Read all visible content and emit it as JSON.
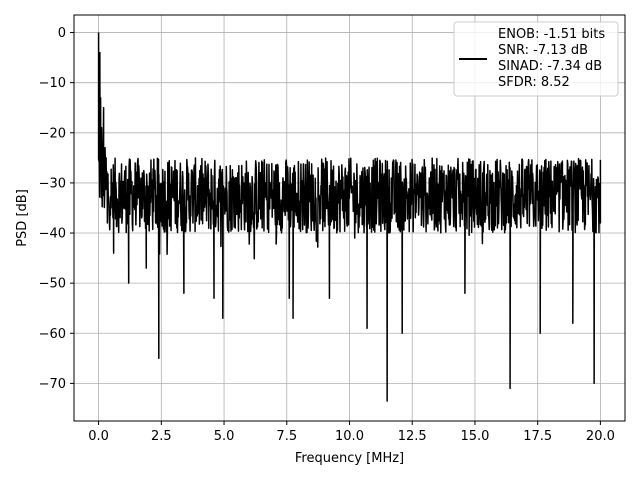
{
  "chart_data": {
    "type": "line",
    "title": "",
    "xlabel": "Frequency [MHz]",
    "ylabel": "PSD [dB]",
    "xlim": [
      -0.98,
      20.98
    ],
    "ylim": [
      -77.5,
      3.5
    ],
    "x_ticks": [
      0.0,
      2.5,
      5.0,
      7.5,
      10.0,
      12.5,
      15.0,
      17.5,
      20.0
    ],
    "x_tick_labels": [
      "0.0",
      "2.5",
      "5.0",
      "7.5",
      "10.0",
      "12.5",
      "15.0",
      "17.5",
      "20.0"
    ],
    "y_ticks": [
      0,
      -10,
      -20,
      -30,
      -40,
      -50,
      -60,
      -70
    ],
    "y_tick_labels": [
      "0",
      "−10",
      "−20",
      "−30",
      "−40",
      "−50",
      "−60",
      "−70"
    ],
    "grid": true,
    "legend_position": "top-right",
    "legend_entries": [
      "ENOB: -1.51 bits",
      "SNR: -7.13 dB",
      "SINAD: -7.34 dB",
      "SFDR: 8.52"
    ],
    "series": [
      {
        "color": "#000000",
        "noise_floor_range": [
          -40,
          -25
        ],
        "points": [
          {
            "x": 0.0,
            "y": 0
          },
          {
            "x": 0.02,
            "y": -9
          },
          {
            "x": 0.05,
            "y": -4
          },
          {
            "x": 0.08,
            "y": -13
          },
          {
            "x": 0.12,
            "y": -19
          },
          {
            "x": 0.2,
            "y": -15
          },
          {
            "x": 0.3,
            "y": -25
          },
          {
            "x": 0.35,
            "y": -38
          },
          {
            "x": 0.5,
            "y": -35
          },
          {
            "x": 0.6,
            "y": -44
          },
          {
            "x": 1.2,
            "y": -50
          },
          {
            "x": 1.9,
            "y": -47
          },
          {
            "x": 2.4,
            "y": -65
          },
          {
            "x": 3.4,
            "y": -52
          },
          {
            "x": 4.6,
            "y": -53
          },
          {
            "x": 4.95,
            "y": -57
          },
          {
            "x": 7.6,
            "y": -53
          },
          {
            "x": 7.75,
            "y": -57
          },
          {
            "x": 9.2,
            "y": -53
          },
          {
            "x": 10.7,
            "y": -59
          },
          {
            "x": 11.5,
            "y": -73.5
          },
          {
            "x": 12.1,
            "y": -60
          },
          {
            "x": 14.6,
            "y": -52
          },
          {
            "x": 16.4,
            "y": -71
          },
          {
            "x": 17.6,
            "y": -60
          },
          {
            "x": 18.9,
            "y": -58
          },
          {
            "x": 19.75,
            "y": -70
          },
          {
            "x": 20.0,
            "y": -38
          }
        ]
      }
    ]
  }
}
